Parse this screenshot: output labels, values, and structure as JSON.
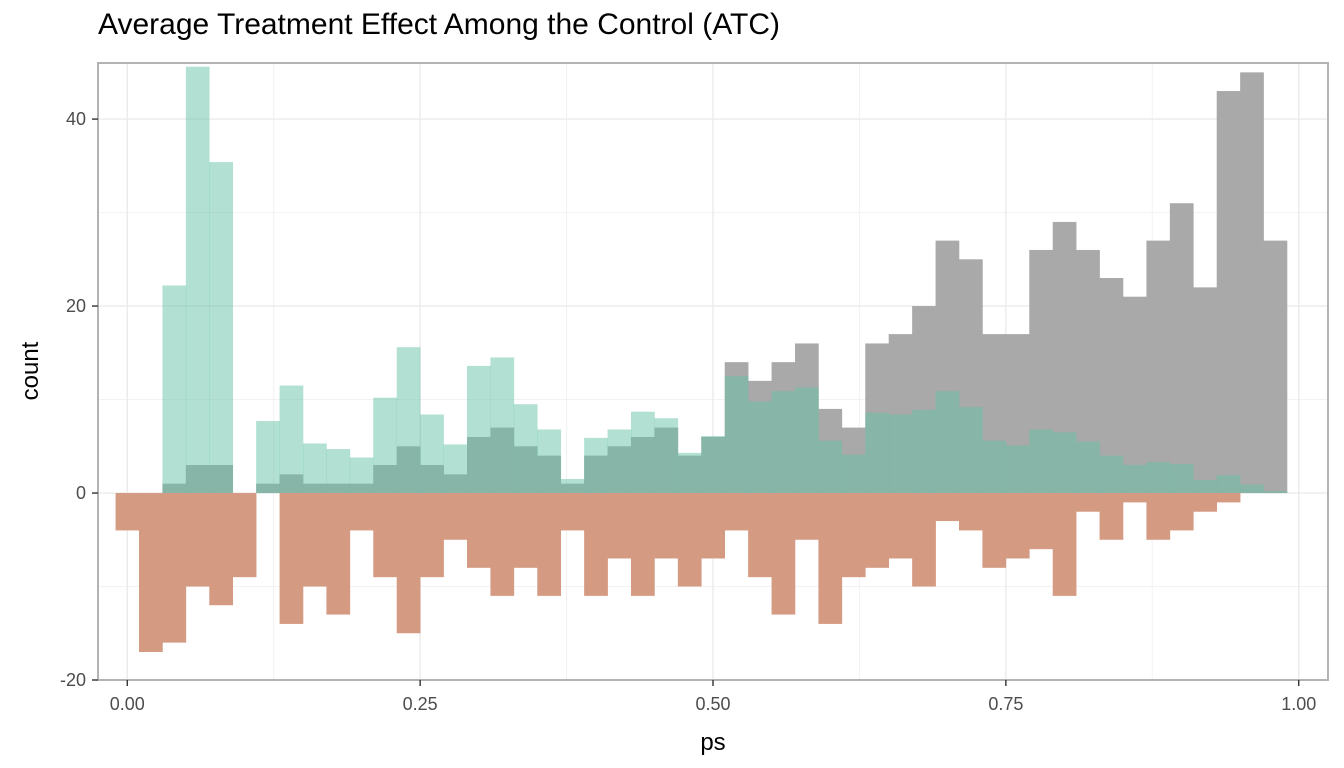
{
  "chart_data": {
    "type": "histogram",
    "title": "Average Treatment Effect Among the Control (ATC)",
    "xlabel": "ps",
    "ylabel": "count",
    "xlim": [
      -0.025,
      1.025
    ],
    "ylim": [
      -20,
      46
    ],
    "x_ticks": [
      0,
      0.25,
      0.5,
      0.75,
      1
    ],
    "x_tick_labels": [
      "0.00",
      "0.25",
      "0.50",
      "0.75",
      "1.00"
    ],
    "y_ticks": [
      -20,
      0,
      20,
      40
    ],
    "y_tick_labels": [
      "-20",
      "0",
      "20",
      "40"
    ],
    "bin_starts": [
      -0.01,
      0.01,
      0.03,
      0.05,
      0.07,
      0.09,
      0.11,
      0.13,
      0.15,
      0.17,
      0.19,
      0.21,
      0.23,
      0.25,
      0.27,
      0.29,
      0.31,
      0.33,
      0.35,
      0.37,
      0.39,
      0.41,
      0.43,
      0.45,
      0.47,
      0.49,
      0.51,
      0.53,
      0.55,
      0.57,
      0.59,
      0.61,
      0.63,
      0.65,
      0.67,
      0.69,
      0.71,
      0.73,
      0.75,
      0.77,
      0.79,
      0.81,
      0.83,
      0.85,
      0.87,
      0.89,
      0.91,
      0.93,
      0.95,
      0.97,
      0.99
    ],
    "bin_width": 0.02,
    "grid": true,
    "series": [
      {
        "values": [
          0,
          0,
          1,
          3,
          3,
          0,
          1,
          2,
          1,
          1,
          1,
          3,
          5,
          3,
          2,
          6,
          7,
          5,
          4,
          1,
          4,
          5,
          6,
          7,
          4,
          6,
          14,
          12,
          14,
          16,
          9,
          7,
          16,
          17,
          20,
          27,
          25,
          17,
          17,
          26,
          29,
          26,
          23,
          21,
          27,
          31,
          22,
          43,
          45,
          27,
          0
        ],
        "color": "#a9a9a9"
      },
      {
        "values": [
          0,
          0,
          22.2,
          45.6,
          35.4,
          0,
          7.7,
          11.5,
          5.3,
          4.7,
          3.8,
          10.2,
          15.6,
          8.4,
          5.2,
          13.6,
          14.5,
          9.5,
          6.8,
          1.5,
          5.9,
          6.8,
          8.7,
          8.0,
          4.3,
          6.1,
          12.5,
          9.8,
          10.9,
          11.3,
          5.6,
          4.1,
          8.6,
          8.4,
          8.9,
          10.9,
          9.2,
          5.6,
          5.1,
          6.8,
          6.5,
          5.5,
          4.0,
          3.0,
          3.3,
          3.1,
          1.4,
          1.9,
          0.9,
          0.2,
          0
        ],
        "color": "#66c2a5",
        "opacity": 0.5
      },
      {
        "values": [
          -4,
          -17,
          -16,
          -10,
          -12,
          -9,
          0,
          -14,
          -10,
          -13,
          -4,
          -9,
          -15,
          -9,
          -5,
          -8,
          -11,
          -8,
          -11,
          -4,
          -11,
          -7,
          -11,
          -7,
          -10,
          -7,
          -4,
          -9,
          -13,
          -5,
          -14,
          -9,
          -8,
          -7,
          -10,
          -3,
          -4,
          -8,
          -7,
          -6,
          -11,
          -2,
          -5,
          -1,
          -5,
          -4,
          -2,
          -1,
          0,
          0,
          0
        ],
        "color": "#d49a82"
      }
    ]
  }
}
